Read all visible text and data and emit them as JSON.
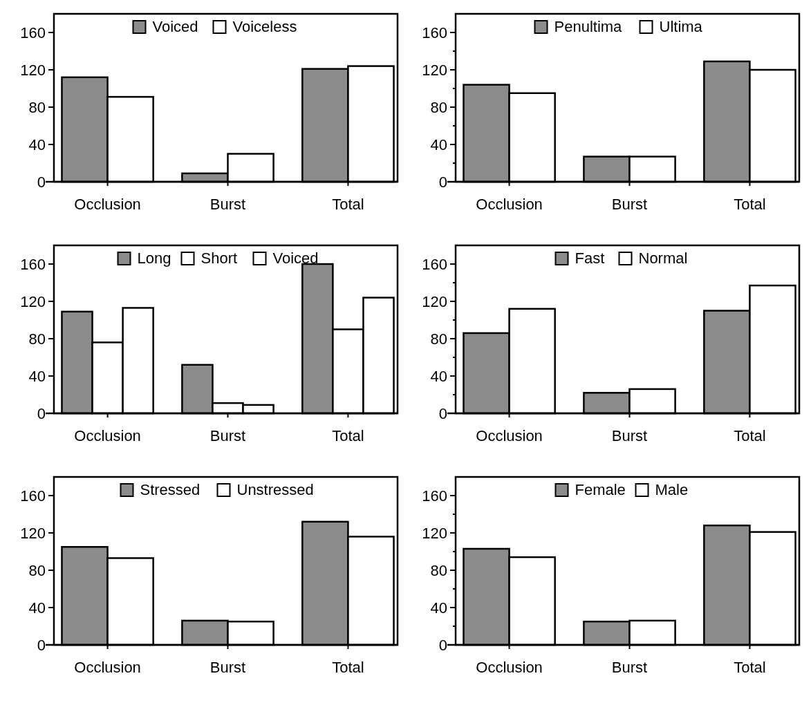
{
  "chart_data": [
    {
      "type": "bar",
      "categories": [
        "Occlusion",
        "Burst",
        "Total"
      ],
      "ylim": [
        0,
        180
      ],
      "yticks": [
        0,
        40,
        80,
        120,
        160
      ],
      "legend": "top",
      "series": [
        {
          "name": "Voiced",
          "color": "#8c8c8c",
          "values": [
            112,
            9,
            121
          ]
        },
        {
          "name": "Voiceless",
          "color": "#ffffff",
          "values": [
            91,
            30,
            124
          ]
        }
      ]
    },
    {
      "type": "bar",
      "categories": [
        "Occlusion",
        "Burst",
        "Total"
      ],
      "ylim": [
        0,
        180
      ],
      "yticks": [
        0,
        {
          "value": 20,
          "label": null
        },
        40,
        {
          "value": 60,
          "label": null
        },
        80,
        {
          "value": 100,
          "label": null
        },
        120,
        {
          "value": 140,
          "label": null
        },
        160
      ],
      "legend": "top",
      "series": [
        {
          "name": "Penultima",
          "color": "#8c8c8c",
          "values": [
            104,
            27,
            129
          ]
        },
        {
          "name": "Ultima",
          "color": "#ffffff",
          "values": [
            95,
            27,
            120
          ]
        }
      ]
    },
    {
      "type": "bar",
      "categories": [
        "Occlusion",
        "Burst",
        "Total"
      ],
      "ylim": [
        0,
        180
      ],
      "yticks": [
        0,
        40,
        80,
        120,
        160
      ],
      "legend": "top",
      "series": [
        {
          "name": "Long",
          "color": "#8c8c8c",
          "values": [
            109,
            52,
            160
          ]
        },
        {
          "name": "Short",
          "color": "#ffffff",
          "values": [
            76,
            11,
            90
          ]
        },
        {
          "name": "Voiced",
          "color": "#ffffff",
          "values": [
            113,
            9,
            124
          ]
        }
      ]
    },
    {
      "type": "bar",
      "categories": [
        "Occlusion",
        "Burst",
        "Total"
      ],
      "ylim": [
        0,
        180
      ],
      "yticks": [
        0,
        {
          "value": 20,
          "label": null
        },
        40,
        {
          "value": 60,
          "label": null
        },
        80,
        {
          "value": 100,
          "label": null
        },
        120,
        {
          "value": 140,
          "label": null
        },
        160
      ],
      "legend": "top",
      "series": [
        {
          "name": "Fast",
          "color": "#8c8c8c",
          "values": [
            86,
            22,
            110
          ]
        },
        {
          "name": "Normal",
          "color": "#ffffff",
          "values": [
            112,
            26,
            137
          ]
        }
      ]
    },
    {
      "type": "bar",
      "categories": [
        "Occlusion",
        "Burst",
        "Total"
      ],
      "ylim": [
        0,
        180
      ],
      "yticks": [
        0,
        40,
        80,
        120,
        160
      ],
      "legend": "top",
      "series": [
        {
          "name": "Stressed",
          "color": "#8c8c8c",
          "values": [
            105,
            26,
            132
          ]
        },
        {
          "name": "Unstressed",
          "color": "#ffffff",
          "values": [
            93,
            25,
            116
          ]
        }
      ]
    },
    {
      "type": "bar",
      "categories": [
        "Occlusion",
        "Burst",
        "Total"
      ],
      "ylim": [
        0,
        180
      ],
      "yticks": [
        0,
        {
          "value": 20,
          "label": null
        },
        40,
        {
          "value": 60,
          "label": null
        },
        80,
        {
          "value": 100,
          "label": null
        },
        120,
        {
          "value": 140,
          "label": null
        },
        160
      ],
      "legend": "top",
      "series": [
        {
          "name": "Female",
          "color": "#8c8c8c",
          "values": [
            103,
            25,
            128
          ]
        },
        {
          "name": "Male",
          "color": "#ffffff",
          "values": [
            94,
            26,
            121
          ]
        }
      ]
    }
  ]
}
